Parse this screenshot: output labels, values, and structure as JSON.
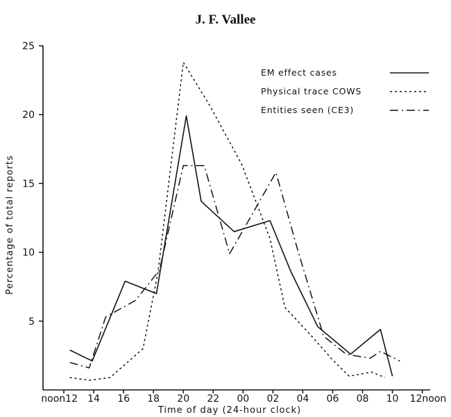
{
  "header": {
    "title": "J. F. Vallee"
  },
  "chart_data": {
    "type": "line",
    "xlabel": "Time of day (24-hour clock)",
    "ylabel": "Percentage of total reports",
    "x_ticks": [
      "noon12",
      "14",
      "16",
      "18",
      "20",
      "22",
      "00",
      "02",
      "04",
      "06",
      "08",
      "10",
      "12noon"
    ],
    "yticks": [
      5,
      10,
      15,
      20,
      25
    ],
    "ylim": [
      0,
      25
    ],
    "grid": false,
    "legend_position": "top-right",
    "series": [
      {
        "name": "EM effect cases",
        "style": "solid",
        "points": [
          [
            0.2,
            2.9
          ],
          [
            0.95,
            2.1
          ],
          [
            2.05,
            7.9
          ],
          [
            3.1,
            7.0
          ],
          [
            4.1,
            19.9
          ],
          [
            4.6,
            13.7
          ],
          [
            5.7,
            11.5
          ],
          [
            6.9,
            12.3
          ],
          [
            7.6,
            8.6
          ],
          [
            8.5,
            4.6
          ],
          [
            9.6,
            2.6
          ],
          [
            10.6,
            4.4
          ],
          [
            11.0,
            1.0
          ]
        ]
      },
      {
        "name": "Physical trace COWS",
        "style": "dotted",
        "points": [
          [
            0.2,
            0.9
          ],
          [
            0.85,
            0.7
          ],
          [
            1.55,
            0.9
          ],
          [
            2.65,
            3.0
          ],
          [
            3.15,
            8.5
          ],
          [
            4.0,
            23.8
          ],
          [
            4.9,
            20.6
          ],
          [
            5.95,
            16.4
          ],
          [
            6.9,
            11.0
          ],
          [
            7.4,
            6.0
          ],
          [
            8.3,
            3.9
          ],
          [
            8.95,
            2.3
          ],
          [
            9.55,
            1.0
          ],
          [
            10.3,
            1.3
          ],
          [
            10.75,
            0.9
          ]
        ]
      },
      {
        "name": "Entities seen (CE3)",
        "style": "dashdot",
        "points": [
          [
            0.2,
            2.0
          ],
          [
            0.85,
            1.6
          ],
          [
            1.4,
            5.3
          ],
          [
            2.4,
            6.5
          ],
          [
            3.2,
            8.7
          ],
          [
            4.0,
            16.3
          ],
          [
            4.7,
            16.3
          ],
          [
            5.55,
            9.9
          ],
          [
            6.0,
            11.6
          ],
          [
            7.1,
            15.8
          ],
          [
            7.85,
            10.0
          ],
          [
            8.7,
            3.9
          ],
          [
            9.45,
            2.6
          ],
          [
            10.25,
            2.3
          ],
          [
            10.6,
            2.8
          ],
          [
            11.25,
            2.1
          ]
        ]
      }
    ]
  }
}
